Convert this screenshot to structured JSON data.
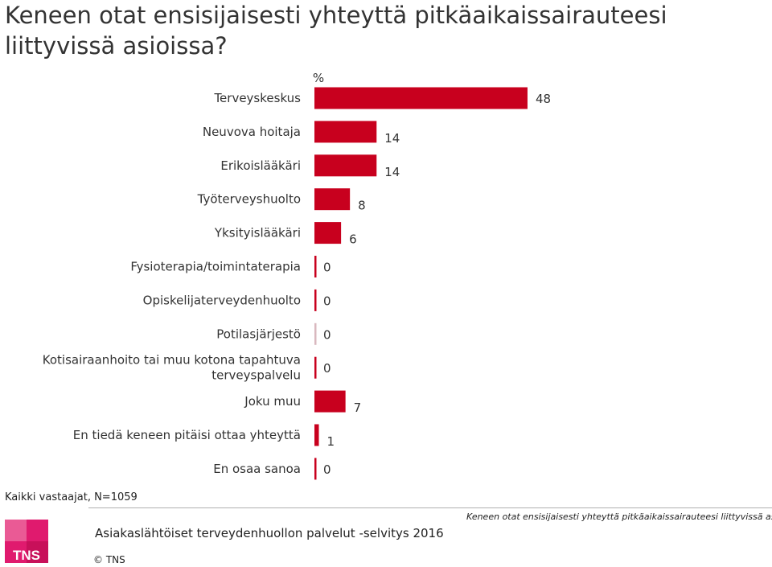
{
  "title": "Keneen otat ensisijaisesti yhteyttä pitkäaikaissairauteesi liittyvissä asioissa?",
  "chart_data": {
    "type": "bar",
    "orientation": "horizontal",
    "unit_label": "%",
    "bar_color": "#c8001e",
    "categories": [
      "Terveyskeskus",
      "Neuvova hoitaja",
      "Erikoislääkäri",
      "Työterveyshuolto",
      "Yksityislääkäri",
      "Fysioterapia/toimintaterapia",
      "Opiskelijaterveydenhuolto",
      "Potilasjärjestö",
      "Kotisairaanhoito tai muu kotona tapahtuva terveyspalvelu",
      "Joku muu",
      "En tiedä keneen pitäisi ottaa yhteyttä",
      "En osaa sanoa"
    ],
    "values": [
      48,
      14,
      14,
      8,
      6,
      0,
      0,
      0,
      0,
      7,
      1,
      0
    ],
    "value_labels": [
      "48",
      "14",
      "14",
      "8",
      "6",
      "0",
      "0",
      "0",
      "0",
      "7",
      "1",
      "0"
    ]
  },
  "base_note": "Kaikki vastaajat, N=1059",
  "survey_name": "Asiakaslähtöiset terveydenhuollon palvelut -selvitys 2016",
  "footer_question": "Keneen otat ensisijaisesti yhteyttä pitkäaikaissairauteesi liittyvissä asioissa?",
  "logo_text": "TNS",
  "copyright": "© TNS",
  "brand_color": "#c8001e"
}
